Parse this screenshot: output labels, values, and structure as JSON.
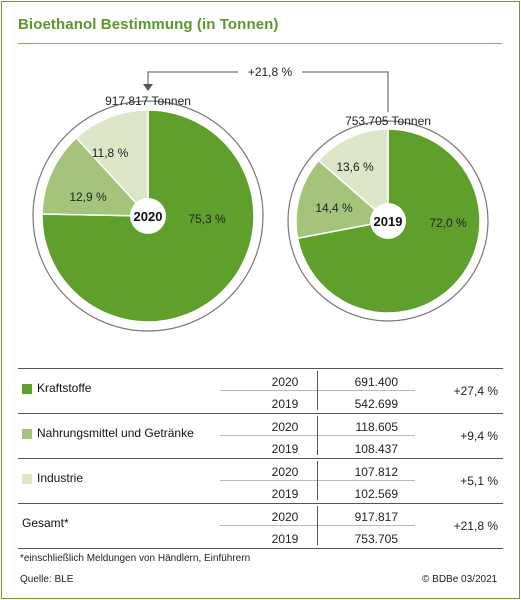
{
  "title": "Bioethanol Bestimmung (in Tonnen)",
  "chart_data": {
    "type": "pie",
    "change_label": "+21,8 %",
    "pies": [
      {
        "year": "2020",
        "total_label": "917.817 Tonnen",
        "slices": [
          {
            "name": "Kraftstoffe",
            "value": 75.3,
            "label": "75,3 %",
            "color": "#5fa02d"
          },
          {
            "name": "Nahrungsmittel und Getränke",
            "value": 12.9,
            "label": "12,9 %",
            "color": "#a3c47a"
          },
          {
            "name": "Industrie",
            "value": 11.8,
            "label": "11,8 %",
            "color": "#dde6c6"
          }
        ]
      },
      {
        "year": "2019",
        "total_label": "753.705 Tonnen",
        "slices": [
          {
            "name": "Kraftstoffe",
            "value": 72.0,
            "label": "72,0 %",
            "color": "#5fa02d"
          },
          {
            "name": "Nahrungsmittel und Getränke",
            "value": 14.4,
            "label": "14,4 %",
            "color": "#a3c47a"
          },
          {
            "name": "Industrie",
            "value": 13.6,
            "label": "13,6 %",
            "color": "#dde6c6"
          }
        ]
      }
    ]
  },
  "table": {
    "rows": [
      {
        "label": "Kraftstoffe",
        "color": "#5fa02d",
        "y2020": "2020",
        "v2020": "691.400",
        "y2019": "2019",
        "v2019": "542.699",
        "change": "+27,4 %"
      },
      {
        "label": "Nahrungsmittel und Getränke",
        "color": "#a3c47a",
        "y2020": "2020",
        "v2020": "118.605",
        "y2019": "2019",
        "v2019": "108.437",
        "change": "+9,4 %"
      },
      {
        "label": "Industrie",
        "color": "#dde6c6",
        "y2020": "2020",
        "v2020": "107.812",
        "y2019": "2019",
        "v2019": "102.569",
        "change": "+5,1 %"
      },
      {
        "label": "Gesamt*",
        "color": "",
        "y2020": "2020",
        "v2020": "917.817",
        "y2019": "2019",
        "v2019": "753.705",
        "change": "+21,8 %"
      }
    ]
  },
  "footnote": "*einschließlich Meldungen von Händlern, Einführern",
  "source": "Quelle: BLE",
  "copyright": "© BDBe 03/2021"
}
